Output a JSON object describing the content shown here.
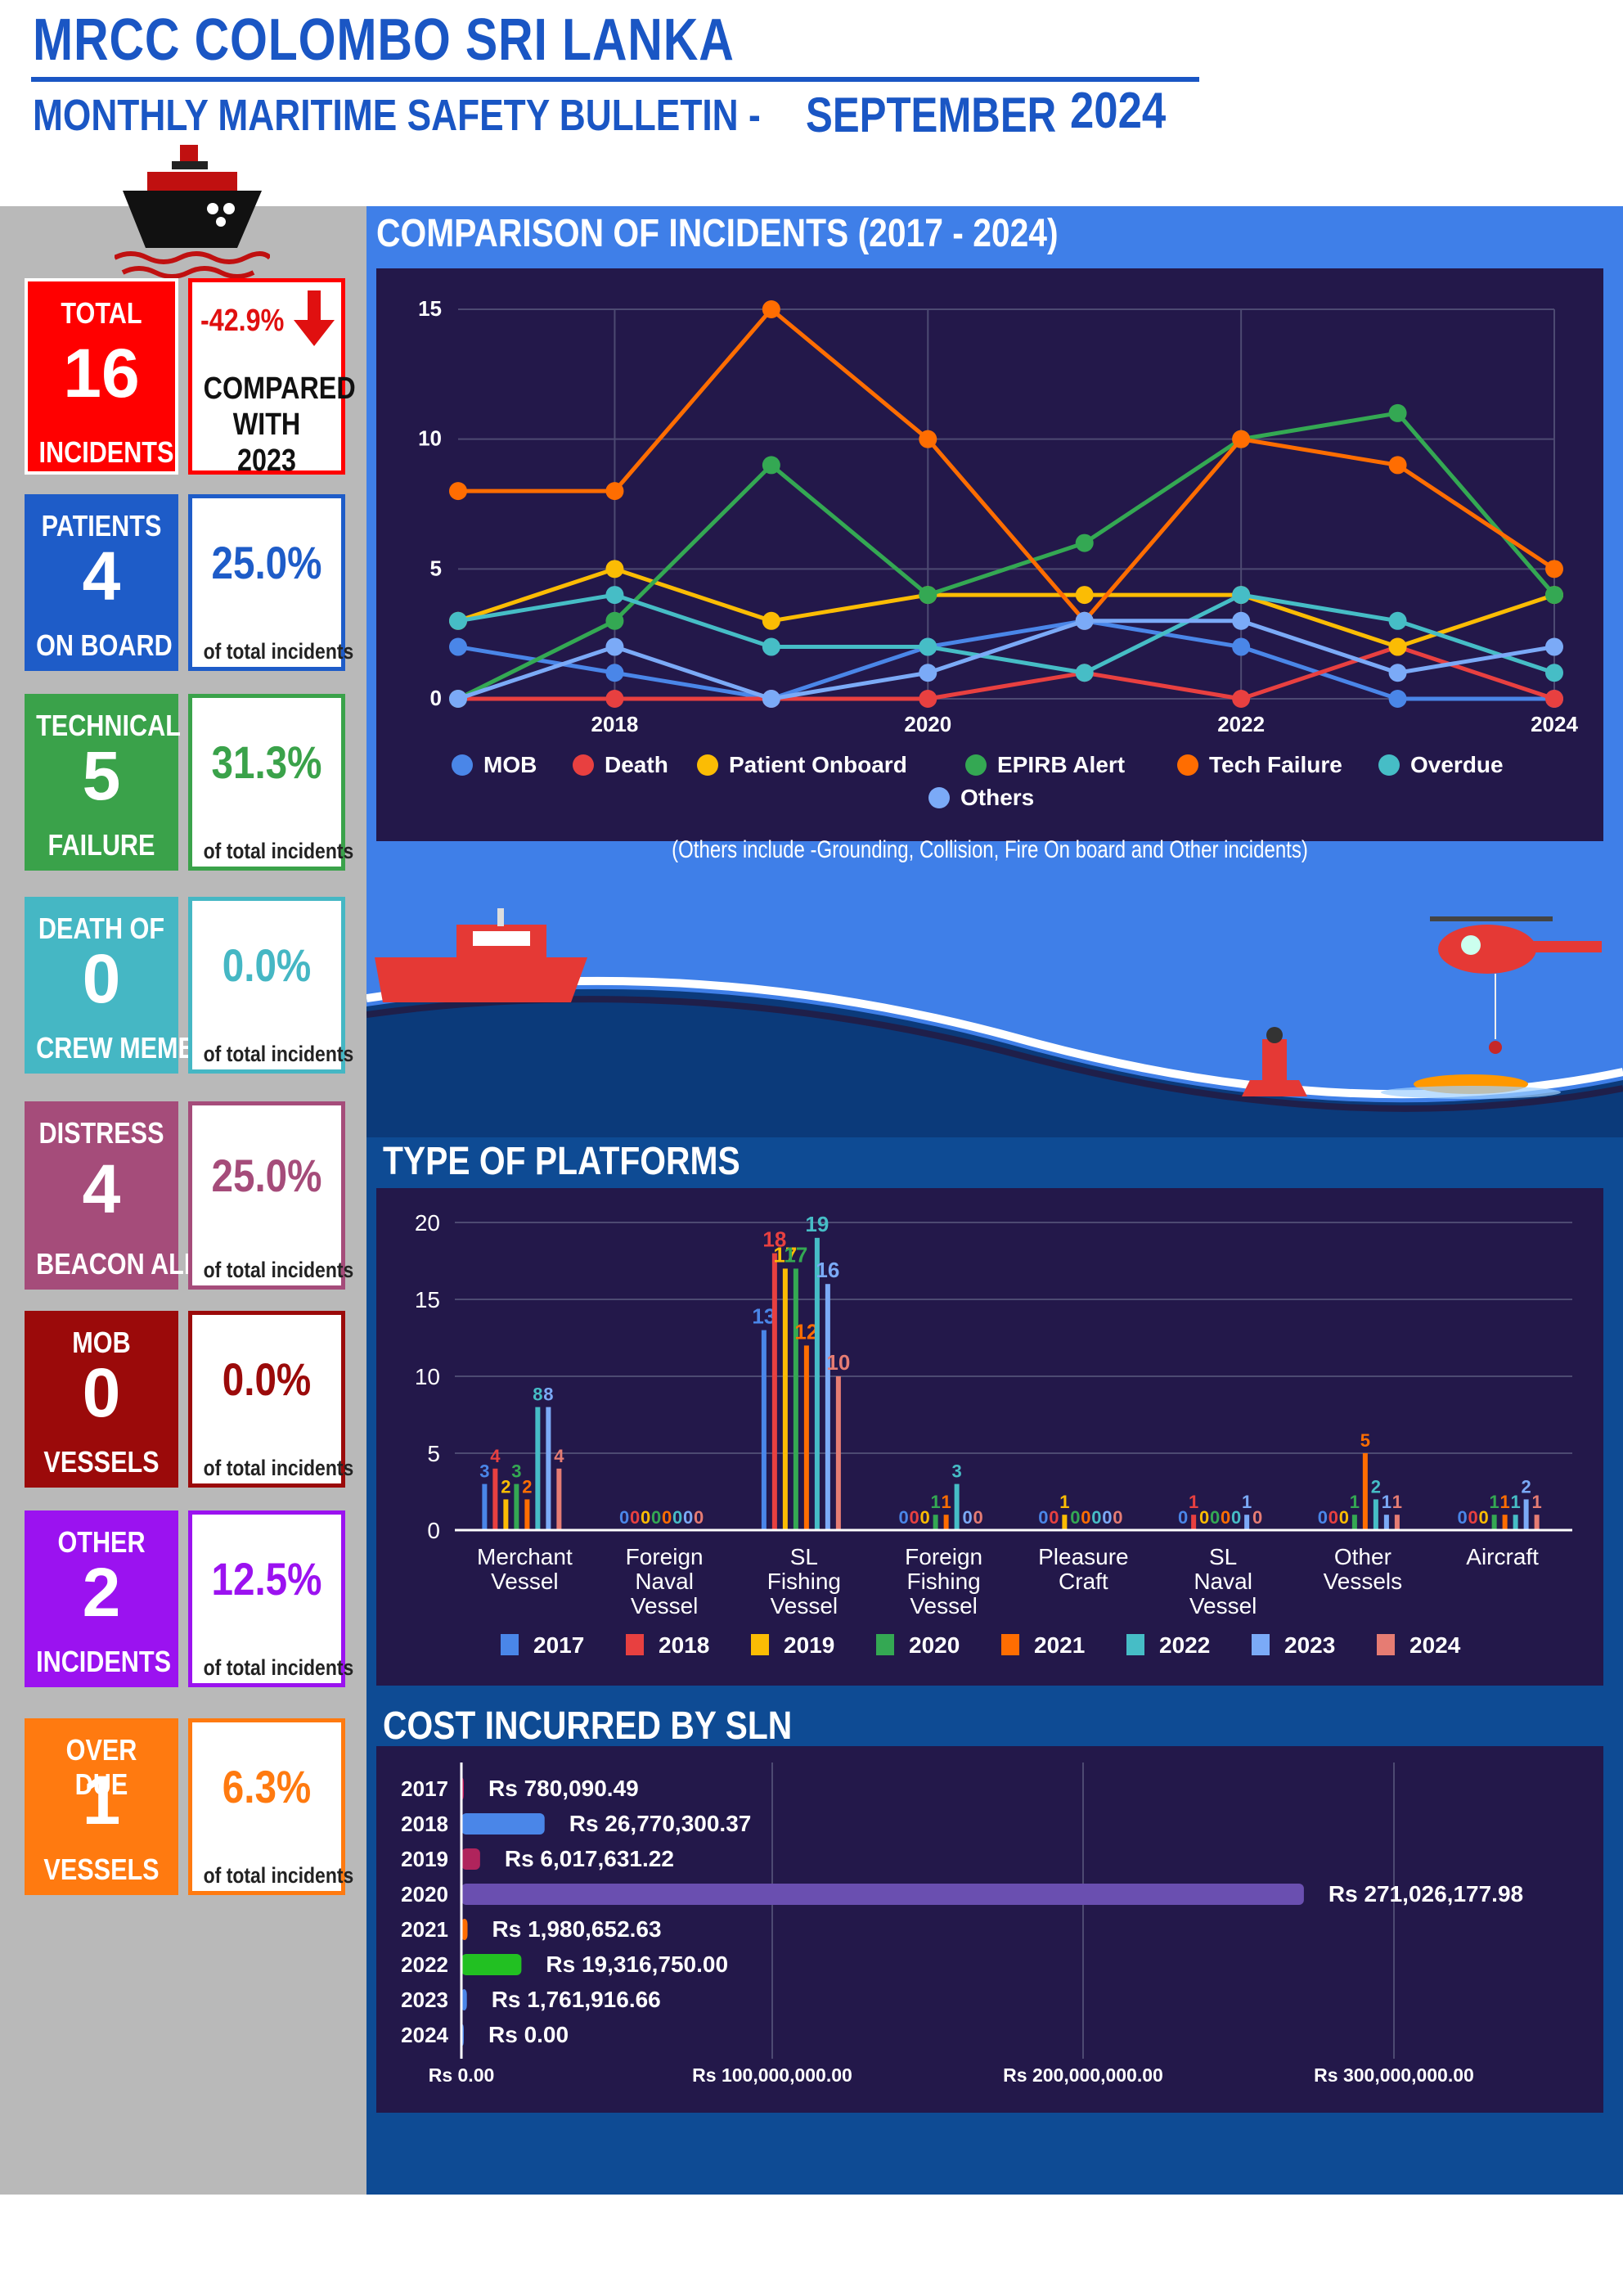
{
  "header": {
    "title": "MRCC COLOMBO SRI LANKA",
    "subtitle": "MONTHLY MARITIME SAFETY BULLETIN -",
    "month": "SEPTEMBER",
    "year": "2024"
  },
  "stats": [
    {
      "top": "TOTAL",
      "number": "16",
      "bottom": "INCIDENTS",
      "pct": "-42.9%",
      "note": "COMPARED WITH 2023",
      "color": "#ff0000",
      "pct_color": "#e01010"
    },
    {
      "top": "PATIENTS",
      "number": "4",
      "bottom": "ON BOARD",
      "pct": "25.0%",
      "note": "of total incidents",
      "color": "#1e5cc8",
      "pct_color": "#1e5cc8"
    },
    {
      "top": "TECHNICAL",
      "number": "5",
      "bottom": "FAILURE",
      "pct": "31.3%",
      "note": "of total incidents",
      "color": "#3aa24a",
      "pct_color": "#3aa24a"
    },
    {
      "top": "DEATH OF",
      "number": "0",
      "bottom": "CREW MEMBER",
      "pct": "0.0%",
      "note": "of total incidents",
      "color": "#45b7c4",
      "pct_color": "#45b7c4"
    },
    {
      "top": "DISTRESS",
      "number": "4",
      "bottom": "BEACON ALERT",
      "pct": "25.0%",
      "note": "of total incidents",
      "color": "#a54c7a",
      "pct_color": "#a54c7a"
    },
    {
      "top": "MOB",
      "number": "0",
      "bottom": "VESSELS",
      "pct": "0.0%",
      "note": "of total incidents",
      "color": "#9b0a0a",
      "pct_color": "#9b0a0a"
    },
    {
      "top": "OTHER",
      "number": "2",
      "bottom": "INCIDENTS",
      "pct": "12.5%",
      "note": "of total incidents",
      "color": "#9b12f0",
      "pct_color": "#9b12f0"
    },
    {
      "top": "OVER DUE",
      "number": "1",
      "bottom": "VESSELS",
      "pct": "6.3%",
      "note": "of total incidents",
      "color": "#ff7a10",
      "pct_color": "#ff7a10"
    }
  ],
  "sections": {
    "comparison_title": "COMPARISON OF INCIDENTS (2017 - 2024)",
    "others_note": "(Others include -Grounding, Collision, Fire On board and Other incidents)",
    "platforms_title": "TYPE OF PLATFORMS",
    "cost_title": "COST INCURRED BY SLN"
  },
  "chart_data": [
    {
      "type": "line",
      "title": "COMPARISON OF INCIDENTS (2017 - 2024)",
      "x": [
        2017,
        2018,
        2019,
        2020,
        2021,
        2022,
        2023,
        2024
      ],
      "x_ticks": [
        "2018",
        "2020",
        "2022",
        "2024"
      ],
      "ylim": [
        0,
        15
      ],
      "y_ticks": [
        "0",
        "5",
        "10",
        "15"
      ],
      "grid": true,
      "legend": "bottom",
      "series": [
        {
          "name": "MOB",
          "color": "#4a86e8",
          "values": [
            2,
            1,
            0,
            2,
            3,
            2,
            0,
            0
          ]
        },
        {
          "name": "Death",
          "color": "#e84040",
          "values": [
            0,
            0,
            0,
            0,
            1,
            0,
            2,
            0
          ]
        },
        {
          "name": "Patient Onboard",
          "color": "#fbbc04",
          "values": [
            3,
            5,
            3,
            4,
            4,
            4,
            2,
            4
          ]
        },
        {
          "name": "EPIRB Alert",
          "color": "#34a853",
          "values": [
            0,
            3,
            9,
            4,
            6,
            10,
            11,
            4
          ]
        },
        {
          "name": "Tech Failure",
          "color": "#ff6d01",
          "values": [
            8,
            8,
            15,
            10,
            3,
            10,
            9,
            5
          ]
        },
        {
          "name": "Overdue",
          "color": "#46bdc6",
          "values": [
            3,
            4,
            2,
            2,
            1,
            4,
            3,
            1
          ]
        },
        {
          "name": "Others",
          "color": "#7baaf7",
          "values": [
            0,
            2,
            0,
            1,
            3,
            3,
            1,
            2
          ]
        }
      ]
    },
    {
      "type": "bar",
      "title": "TYPE OF PLATFORMS",
      "categories": [
        "Merchant Vessel",
        "Foreign Naval Vessel",
        "SL Fishing Vessel",
        "Foreign Fishing Vessel",
        "Pleasure Craft",
        "SL Naval Vessel",
        "Other Vessels",
        "Aircraft"
      ],
      "ylim": [
        0,
        20
      ],
      "y_ticks": [
        "0",
        "5",
        "10",
        "15",
        "20"
      ],
      "legend": "bottom",
      "series": [
        {
          "name": "2017",
          "color": "#4a86e8",
          "values": [
            3,
            0,
            13,
            0,
            0,
            0,
            0,
            0
          ]
        },
        {
          "name": "2018",
          "color": "#e84040",
          "values": [
            4,
            0,
            18,
            0,
            0,
            1,
            0,
            0
          ]
        },
        {
          "name": "2019",
          "color": "#fbbc04",
          "values": [
            2,
            0,
            17,
            0,
            1,
            0,
            0,
            0
          ]
        },
        {
          "name": "2020",
          "color": "#34a853",
          "values": [
            3,
            0,
            17,
            1,
            0,
            0,
            1,
            1
          ]
        },
        {
          "name": "2021",
          "color": "#ff6d01",
          "values": [
            2,
            0,
            12,
            1,
            0,
            0,
            5,
            1
          ]
        },
        {
          "name": "2022",
          "color": "#46bdc6",
          "values": [
            8,
            0,
            19,
            3,
            0,
            0,
            2,
            1
          ]
        },
        {
          "name": "2023",
          "color": "#7baaf7",
          "values": [
            8,
            0,
            16,
            0,
            0,
            1,
            1,
            2
          ]
        },
        {
          "name": "2024",
          "color": "#e67c73",
          "values": [
            4,
            0,
            10,
            0,
            0,
            0,
            1,
            1
          ]
        }
      ]
    },
    {
      "type": "bar",
      "orientation": "horizontal",
      "title": "COST INCURRED BY SLN",
      "categories": [
        "2017",
        "2018",
        "2019",
        "2020",
        "2021",
        "2022",
        "2023",
        "2024"
      ],
      "values": [
        780090.49,
        26770300.37,
        6017631.22,
        271026177.98,
        1980652.63,
        19316750.0,
        1761916.66,
        0
      ],
      "labels": [
        "Rs 780,090.49",
        "Rs 26,770,300.37",
        "Rs 6,017,631.22",
        "Rs 271,026,177.98",
        "Rs 1,980,652.63",
        "Rs 19,316,750.00",
        "Rs 1,761,916.66",
        "Rs 0.00"
      ],
      "colors": [
        "#c2185b",
        "#4a86e8",
        "#b0245c",
        "#6a4fb0",
        "#ff6d01",
        "#22c022",
        "#4a86e8",
        "#4a86e8"
      ],
      "xlim": [
        0,
        300000000
      ],
      "x_ticks": [
        0,
        100000000,
        200000000,
        300000000
      ],
      "x_tick_labels": [
        "Rs 0.00",
        "Rs 100,000,000.00",
        "Rs 200,000,000.00",
        "Rs 300,000,000.00"
      ],
      "grid": true
    }
  ]
}
